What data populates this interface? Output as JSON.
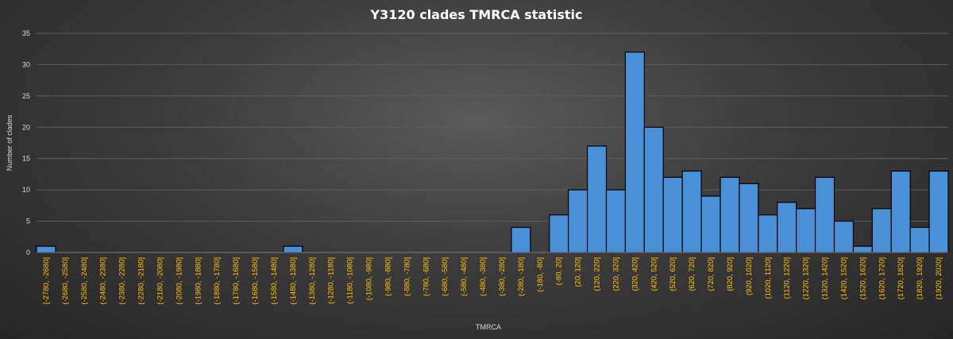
{
  "chart_data": {
    "type": "bar",
    "title": "Y3120 clades  TMRCA  statistic",
    "xlabel": "TMRCA",
    "ylabel": "Number of clades",
    "ylim": [
      0,
      35
    ],
    "yticks": [
      0,
      5,
      10,
      15,
      20,
      25,
      30,
      35
    ],
    "grid": true,
    "colors": {
      "bar": "#4a90d9",
      "bar_edge": "#000000",
      "tick_label": "#ffc000"
    },
    "categories": [
      "[-2780, -2680]",
      "(-2680, -2580]",
      "(-2580, -2480]",
      "(-2480, -2380]",
      "(-2380, -2280]",
      "(-2280, -2180]",
      "(-2180, -2080]",
      "(-2080, -1980]",
      "(-1980, -1880]",
      "(-1880, -1780]",
      "(-1780, -1680]",
      "(-1680, -1580]",
      "(-1580, -1480]",
      "(-1480, -1380]",
      "(-1380, -1280]",
      "(-1280, -1180]",
      "(-1180, -1080]",
      "(-1080, -980]",
      "(-980, -880]",
      "(-880, -780]",
      "(-780, -680]",
      "(-680, -580]",
      "(-580, -480]",
      "(-480, -380]",
      "(-380, -280]",
      "(-280, -180]",
      "(-180, -80]",
      "(-80, 20]",
      "(20, 120]",
      "(120, 220]",
      "(220, 320]",
      "(320, 420]",
      "(420, 520]",
      "(520, 620]",
      "(620, 720]",
      "(720, 820]",
      "(820, 920]",
      "(920, 1020]",
      "(1020, 1120]",
      "(1120, 1220]",
      "(1220, 1320]",
      "(1320, 1420]",
      "(1420, 1520]",
      "(1520, 1620]",
      "(1620, 1720]",
      "(1720, 1820]",
      "(1820, 1920]",
      "(1920, 2020]"
    ],
    "values": [
      1,
      0,
      0,
      0,
      0,
      0,
      0,
      0,
      0,
      0,
      0,
      0,
      0,
      1,
      0,
      0,
      0,
      0,
      0,
      0,
      0,
      0,
      0,
      0,
      0,
      4,
      0,
      6,
      10,
      17,
      10,
      32,
      20,
      12,
      13,
      9,
      12,
      11,
      6,
      8,
      7,
      12,
      5,
      1,
      7,
      13,
      4,
      13
    ]
  }
}
